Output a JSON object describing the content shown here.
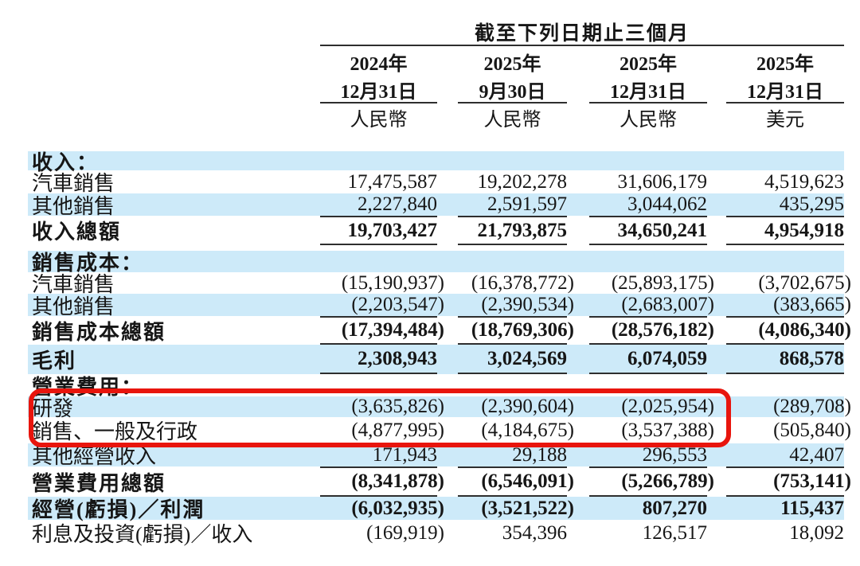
{
  "table": {
    "title": "截至下列日期止三個月",
    "columns": [
      {
        "year": "2024年",
        "date": "12月31日",
        "currency": "人民幣"
      },
      {
        "year": "2025年",
        "date": "9月30日",
        "currency": "人民幣"
      },
      {
        "year": "2025年",
        "date": "12月31日",
        "currency": "人民幣"
      },
      {
        "year": "2025年",
        "date": "12月31日",
        "currency": "美元"
      }
    ],
    "rows": [
      {
        "label": "收入：",
        "values": [
          "",
          "",
          "",
          ""
        ]
      },
      {
        "label": "汽車銷售",
        "values": [
          "17,475,587",
          "19,202,278",
          "31,606,179",
          "4,519,623"
        ]
      },
      {
        "label": "其他銷售",
        "values": [
          "2,227,840",
          "2,591,597",
          "3,044,062",
          "435,295"
        ]
      },
      {
        "label": "收入總額",
        "values": [
          "19,703,427",
          "21,793,875",
          "34,650,241",
          "4,954,918"
        ]
      },
      {
        "label": "銷售成本：",
        "values": [
          "",
          "",
          "",
          ""
        ]
      },
      {
        "label": "汽車銷售",
        "values": [
          "(15,190,937)",
          "(16,378,772)",
          "(25,893,175)",
          "(3,702,675)"
        ]
      },
      {
        "label": "其他銷售",
        "values": [
          "(2,203,547)",
          "(2,390,534)",
          "(2,683,007)",
          "(383,665)"
        ]
      },
      {
        "label": "銷售成本總額",
        "values": [
          "(17,394,484)",
          "(18,769,306)",
          "(28,576,182)",
          "(4,086,340)"
        ]
      },
      {
        "label": "毛利",
        "values": [
          "2,308,943",
          "3,024,569",
          "6,074,059",
          "868,578"
        ]
      },
      {
        "label": "營業費用：",
        "values": [
          "",
          "",
          "",
          ""
        ]
      },
      {
        "label": "研發",
        "values": [
          "(3,635,826)",
          "(2,390,604)",
          "(2,025,954)",
          "(289,708)"
        ]
      },
      {
        "label": "銷售、一般及行政",
        "values": [
          "(4,877,995)",
          "(4,184,675)",
          "(3,537,388)",
          "(505,840)"
        ]
      },
      {
        "label": "其他經營收入",
        "values": [
          "171,943",
          "29,188",
          "296,553",
          "42,407"
        ]
      },
      {
        "label": "營業費用總額",
        "values": [
          "(8,341,878)",
          "(6,546,091)",
          "(5,266,789)",
          "(753,141)"
        ]
      },
      {
        "label": "經營(虧損)／利潤",
        "values": [
          "(6,032,935)",
          "(3,521,522)",
          "807,270",
          "115,437"
        ]
      },
      {
        "label": "利息及投資(虧損)／收入",
        "values": [
          "(169,919)",
          "354,396",
          "126,517",
          "18,092"
        ]
      }
    ]
  },
  "annotation": {
    "type": "red-highlight-box",
    "highlighted_rows": [
      "研發",
      "銷售、一般及行政"
    ]
  },
  "colors": {
    "row_band": "#cdeaf9",
    "highlight_border": "#e8150d",
    "rule": "#2e2e2e",
    "text": "#161616"
  }
}
